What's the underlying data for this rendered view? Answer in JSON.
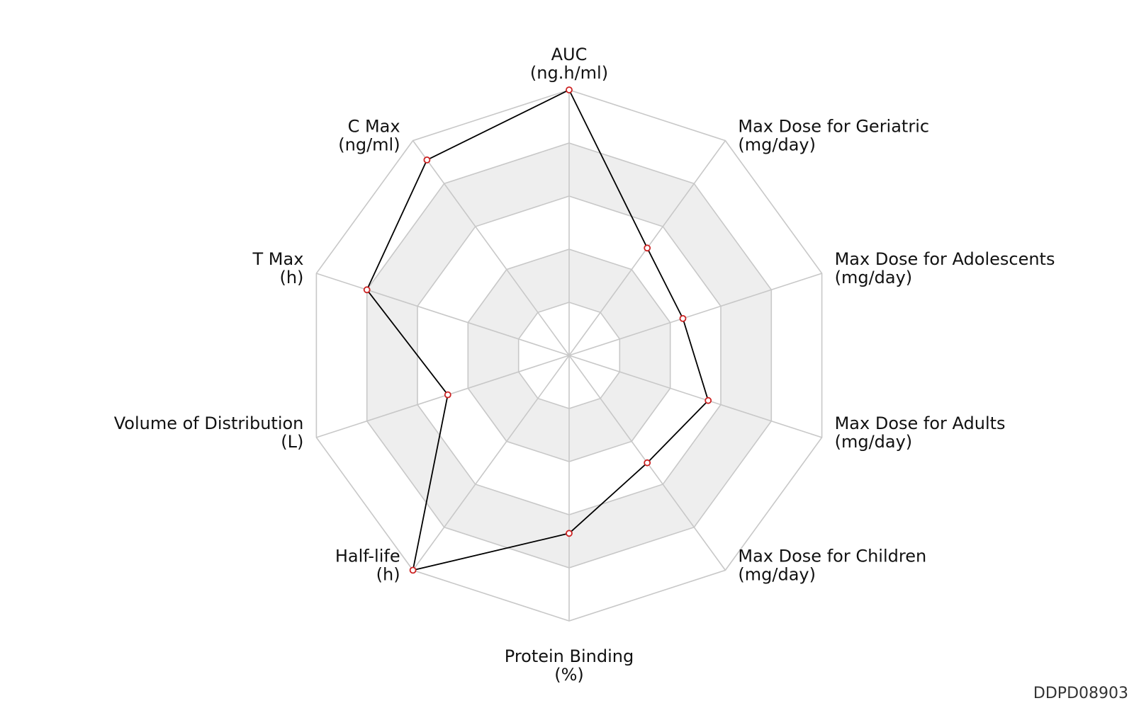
{
  "chart_data": {
    "type": "radar",
    "axes": [
      {
        "name": "AUC",
        "unit": "(ng.h/ml)",
        "value": 1.0
      },
      {
        "name": "Max Dose for Geriatric",
        "unit": "(mg/day)",
        "value": 0.5
      },
      {
        "name": "Max Dose for Adolescents",
        "unit": "(mg/day)",
        "value": 0.45
      },
      {
        "name": "Max Dose for Adults",
        "unit": "(mg/day)",
        "value": 0.55
      },
      {
        "name": "Max Dose for Children",
        "unit": "(mg/day)",
        "value": 0.5
      },
      {
        "name": "Protein Binding",
        "unit": "(%)",
        "value": 0.67
      },
      {
        "name": "Half-life",
        "unit": "(h)",
        "value": 1.0
      },
      {
        "name": "Volume of Distribution",
        "unit": "(L)",
        "value": 0.48
      },
      {
        "name": "T Max",
        "unit": "(h)",
        "value": 0.8
      },
      {
        "name": "C Max",
        "unit": "(ng/ml)",
        "value": 0.91
      }
    ],
    "rlim": [
      0,
      1
    ],
    "rings": 5,
    "line_color": "#000000",
    "marker_color": "#cc2222",
    "band_color": "#eeeeee",
    "grid_color": "#c8c8c8"
  },
  "watermark": "DDPD08903"
}
